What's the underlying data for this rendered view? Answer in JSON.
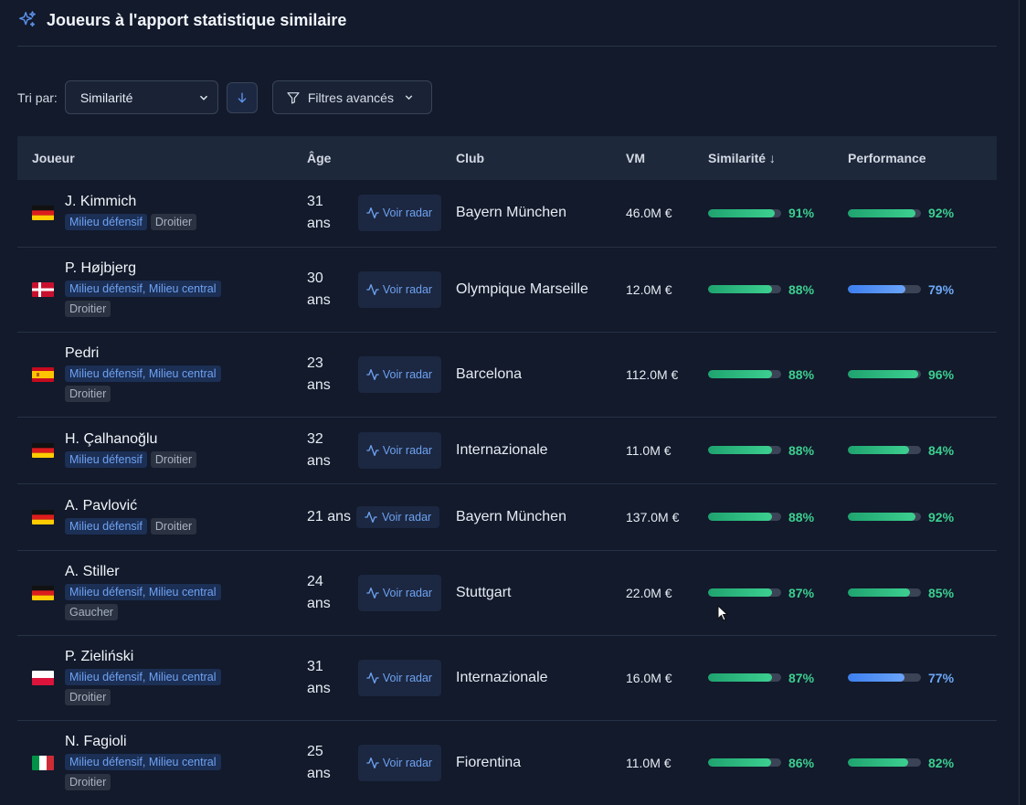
{
  "title": "Joueurs à l'apport statistique similaire",
  "toolbar": {
    "sort_label": "Tri par:",
    "sort_value": "Similarité",
    "filters_label": "Filtres avancés"
  },
  "columns": {
    "player": "Joueur",
    "age": "Âge",
    "club": "Club",
    "vm": "VM",
    "similarity": "Similarité ↓",
    "performance": "Performance"
  },
  "colors": {
    "green": "#3ccf90",
    "blue": "#6ea8f7",
    "accent": "#4f8ff0"
  },
  "players": [
    {
      "name": "J. Kimmich",
      "flag": "germany",
      "positions": "Milieu défensif",
      "foot": "Droitier",
      "age": "31 ans",
      "radar": "Voir radar",
      "club": "Bayern München",
      "vm": "46.0M €",
      "similarity": 91,
      "similarity_label": "91%",
      "performance": 92,
      "performance_label": "92%",
      "perf_color": "green"
    },
    {
      "name": "P. Højbjerg",
      "flag": "denmark",
      "positions": "Milieu défensif, Milieu central",
      "foot": "Droitier",
      "age": "30 ans",
      "radar": "Voir radar",
      "club": "Olympique Marseille",
      "vm": "12.0M €",
      "similarity": 88,
      "similarity_label": "88%",
      "performance": 79,
      "performance_label": "79%",
      "perf_color": "blue"
    },
    {
      "name": "Pedri",
      "flag": "spain",
      "positions": "Milieu défensif, Milieu central",
      "foot": "Droitier",
      "age": "23 ans",
      "radar": "Voir radar",
      "club": "Barcelona",
      "vm": "112.0M €",
      "similarity": 88,
      "similarity_label": "88%",
      "performance": 96,
      "performance_label": "96%",
      "perf_color": "green"
    },
    {
      "name": "H. Çalhanoğlu",
      "flag": "germany",
      "positions": "Milieu défensif",
      "foot": "Droitier",
      "age": "32 ans",
      "radar": "Voir radar",
      "club": "Internazionale",
      "vm": "11.0M €",
      "similarity": 88,
      "similarity_label": "88%",
      "performance": 84,
      "performance_label": "84%",
      "perf_color": "green"
    },
    {
      "name": "A. Pavlović",
      "flag": "germany",
      "positions": "Milieu défensif",
      "foot": "Droitier",
      "age": "21 ans",
      "radar": "Voir radar",
      "club": "Bayern München",
      "vm": "137.0M €",
      "similarity": 88,
      "similarity_label": "88%",
      "performance": 92,
      "performance_label": "92%",
      "perf_color": "green"
    },
    {
      "name": "A. Stiller",
      "flag": "germany",
      "positions": "Milieu défensif, Milieu central",
      "foot": "Gaucher",
      "age": "24 ans",
      "radar": "Voir radar",
      "club": "Stuttgart",
      "vm": "22.0M €",
      "similarity": 87,
      "similarity_label": "87%",
      "performance": 85,
      "performance_label": "85%",
      "perf_color": "green"
    },
    {
      "name": "P. Zieliński",
      "flag": "poland",
      "positions": "Milieu défensif, Milieu central",
      "foot": "Droitier",
      "age": "31 ans",
      "radar": "Voir radar",
      "club": "Internazionale",
      "vm": "16.0M €",
      "similarity": 87,
      "similarity_label": "87%",
      "performance": 77,
      "performance_label": "77%",
      "perf_color": "blue"
    },
    {
      "name": "N. Fagioli",
      "flag": "italy",
      "positions": "Milieu défensif, Milieu central",
      "foot": "Droitier",
      "age": "25 ans",
      "radar": "Voir radar",
      "club": "Fiorentina",
      "vm": "11.0M €",
      "similarity": 86,
      "similarity_label": "86%",
      "performance": 82,
      "performance_label": "82%",
      "perf_color": "green"
    }
  ]
}
